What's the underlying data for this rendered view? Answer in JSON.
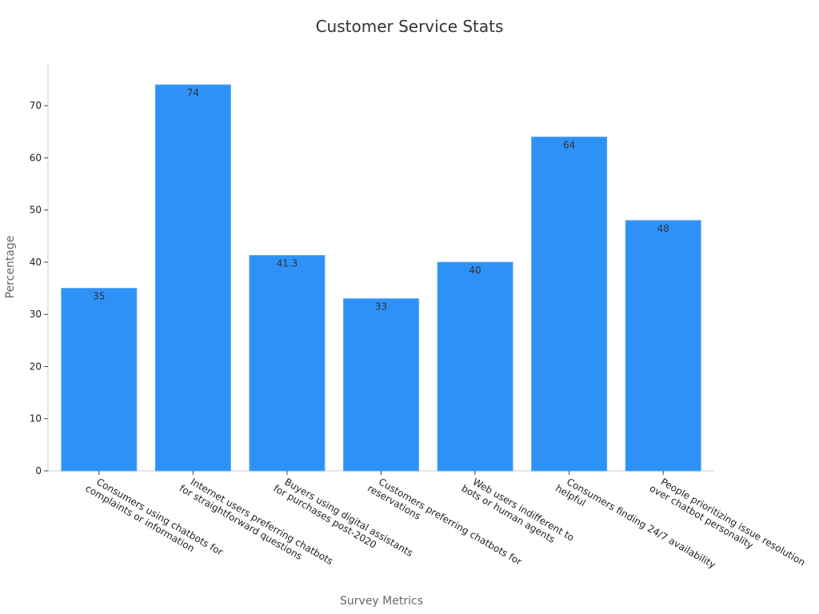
{
  "chart_data": {
    "type": "bar",
    "title": "Customer Service Stats",
    "xlabel": "Survey Metrics",
    "ylabel": "Percentage",
    "ylim": [
      0,
      78
    ],
    "yticks": [
      0,
      10,
      20,
      30,
      40,
      50,
      60,
      70
    ],
    "grid": false,
    "legend": "none",
    "bar_color": "#2e91f7",
    "categories": [
      [
        "Consumers using chatbots for",
        "complaints or information"
      ],
      [
        "Internet users preferring chatbots",
        "for straightforward questions"
      ],
      [
        "Buyers using digital assistants",
        "for purchases post-2020"
      ],
      [
        "Customers preferring chatbots for",
        "reservations"
      ],
      [
        "Web users indifferent to",
        "bots or human agents"
      ],
      [
        "Consumers finding 24/7 availability",
        "helpful"
      ],
      [
        "People prioritizing issue resolution",
        "over chatbot personality"
      ]
    ],
    "values": [
      35,
      74,
      41.3,
      33,
      40,
      64,
      48
    ],
    "value_labels": [
      "35",
      "74",
      "41.3",
      "33",
      "40",
      "64",
      "48"
    ]
  }
}
